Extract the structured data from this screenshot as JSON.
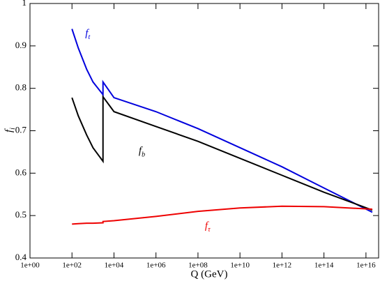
{
  "chart_data": {
    "type": "line",
    "xlabel": "Q (GeV)",
    "ylabel": {
      "main": "f",
      "sub": "i"
    },
    "xscale": "log",
    "xlim": [
      1,
      4e+16
    ],
    "ylim": [
      0.4,
      1
    ],
    "xticks": [
      {
        "value": 1,
        "label": "1e+00"
      },
      {
        "value": 100,
        "label": "1e+02"
      },
      {
        "value": 10000,
        "label": "1e+04"
      },
      {
        "value": 1000000,
        "label": "1e+06"
      },
      {
        "value": 100000000,
        "label": "1e+08"
      },
      {
        "value": 10000000000,
        "label": "1e+10"
      },
      {
        "value": 1000000000000,
        "label": "1e+12"
      },
      {
        "value": 100000000000000,
        "label": "1e+14"
      },
      {
        "value": 10000000000000000,
        "label": "1e+16"
      }
    ],
    "yticks": [
      0.4,
      0.5,
      0.6,
      0.7,
      0.8,
      0.9,
      1
    ],
    "x": [
      100,
      200,
      500,
      1000,
      3000,
      3000,
      10000,
      1000000,
      100000000,
      10000000000,
      1000000000000,
      100000000000000,
      20000000000000000
    ],
    "series": [
      {
        "name": {
          "main": "f",
          "sub": "t"
        },
        "color": "#0000dd",
        "values": [
          0.94,
          0.895,
          0.845,
          0.815,
          0.785,
          0.815,
          0.778,
          0.745,
          0.705,
          0.66,
          0.615,
          0.565,
          0.508
        ]
      },
      {
        "name": {
          "main": "f",
          "sub": "b"
        },
        "color": "#000000",
        "values": [
          0.778,
          0.735,
          0.69,
          0.66,
          0.628,
          0.78,
          0.745,
          0.71,
          0.675,
          0.635,
          0.595,
          0.555,
          0.513
        ]
      },
      {
        "name": {
          "main": "f",
          "sub": "τ"
        },
        "color": "#ee0000",
        "values": [
          0.48,
          0.481,
          0.482,
          0.482,
          0.483,
          0.486,
          0.488,
          0.498,
          0.51,
          0.518,
          0.522,
          0.521,
          0.515
        ]
      }
    ]
  }
}
